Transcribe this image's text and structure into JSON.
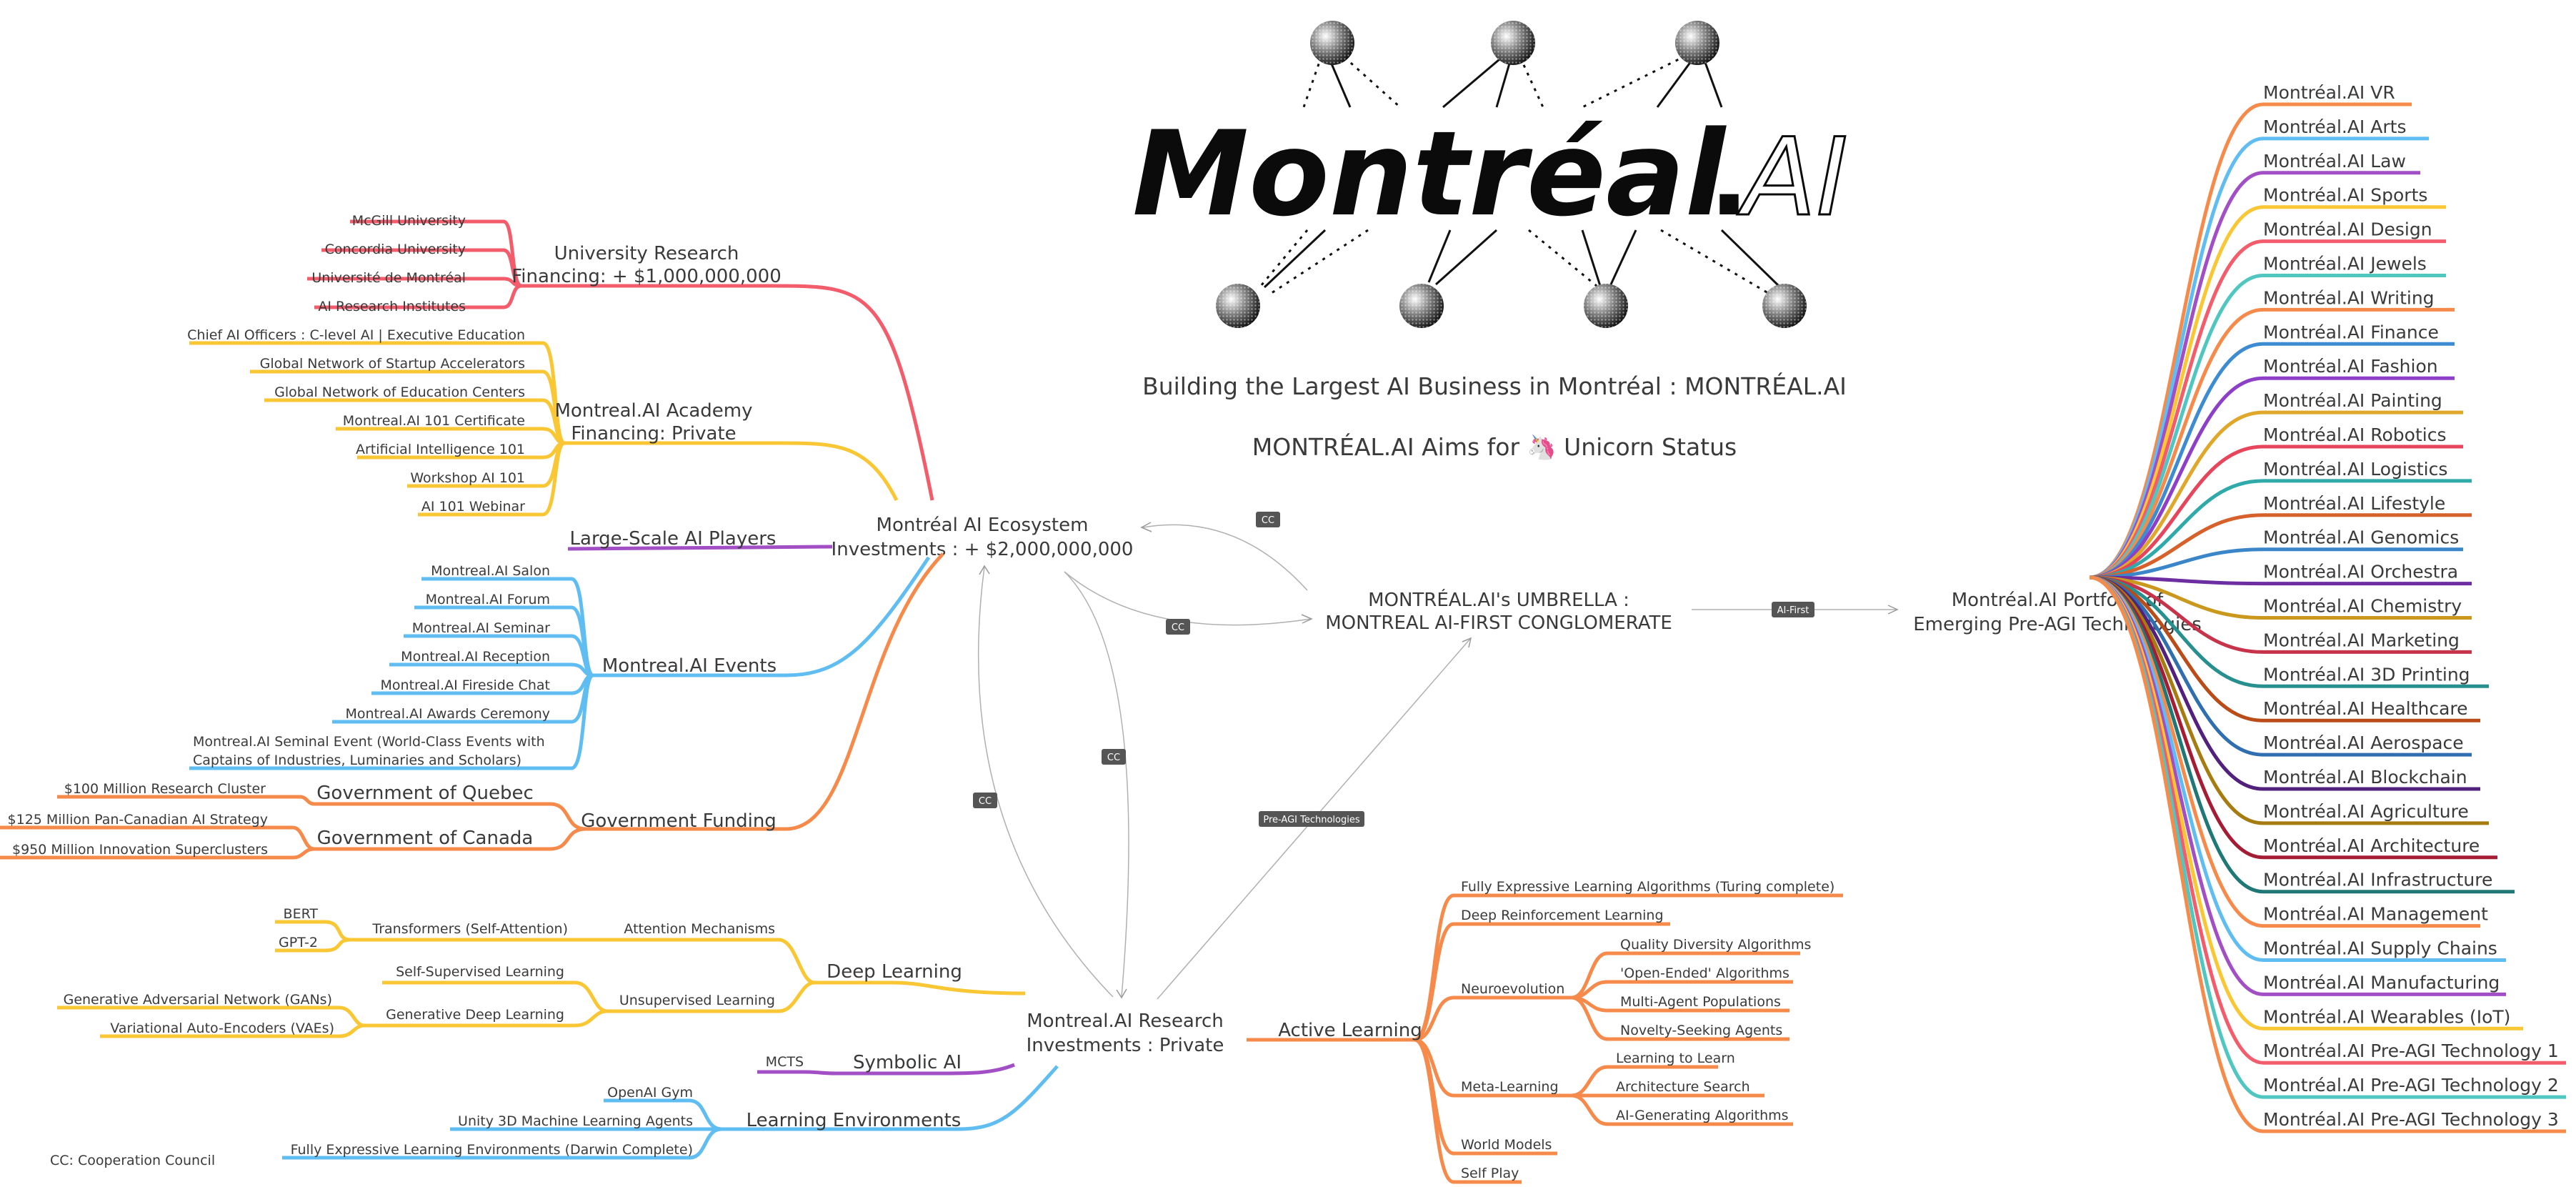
{
  "logo": {
    "word": "Montréal",
    "dot": ".",
    "ai": "AI"
  },
  "headline": "Building the Largest AI Business in Montréal : MONTRÉAL.AI",
  "aims": "MONTRÉAL.AI Aims for 🦄 Unicorn Status",
  "legend": "CC: Cooperation Council",
  "umbrella": {
    "line1": "MONTRÉAL.AI's UMBRELLA :",
    "line2": "MONTREAL AI-FIRST CONGLOMERATE"
  },
  "ecosystem": {
    "line1": "Montréal AI Ecosystem",
    "line2": "Investments : + $2,000,000,000"
  },
  "research": {
    "line1": "Montreal.AI Research",
    "line2": "Investments : Private"
  },
  "portfolio_node": {
    "line1": "Montréal.AI Portfolio of",
    "line2": "Emerging Pre-AGI Technologies"
  },
  "relations": {
    "cc": "CC",
    "ai_first": "AI-First",
    "pre_agi": "Pre-AGI Technologies"
  },
  "colors": {
    "red": "#f25c6b",
    "yellow": "#f9c634",
    "purple": "#a24fc5",
    "blue": "#5fbdf2",
    "orange": "#f58a4b",
    "grey": "#555555"
  },
  "university": {
    "title1": "University Research",
    "title2": "Financing: + $1,000,000,000",
    "items": [
      "McGill University",
      "Concordia University",
      "Université de Montréal",
      "AI Research Institutes"
    ]
  },
  "academy": {
    "title1": "Montreal.AI Academy",
    "title2": "Financing: Private",
    "items": [
      "Chief AI Officers : C-level AI | Executive Education",
      "Global Network of Startup Accelerators",
      "Global Network of Education Centers",
      "Montreal.AI 101 Certificate",
      "Artificial Intelligence 101",
      "Workshop AI 101",
      "AI 101 Webinar"
    ]
  },
  "large_scale": "Large-Scale AI Players",
  "events": {
    "title": "Montreal.AI Events",
    "items": [
      "Montreal.AI Salon",
      "Montreal.AI Forum",
      "Montreal.AI Seminar",
      "Montreal.AI Reception",
      "Montreal.AI Fireside Chat",
      "Montreal.AI Awards Ceremony"
    ],
    "seminal1": "Montreal.AI Seminal Event (World-Class Events with",
    "seminal2": "Captains of Industries, Luminaries and Scholars)"
  },
  "government": {
    "title": "Government Funding",
    "quebec": {
      "label": "Government of Quebec",
      "items": [
        "$100 Million Research Cluster"
      ]
    },
    "canada": {
      "label": "Government of Canada",
      "items": [
        "$125 Million Pan-Canadian AI Strategy",
        "$950 Million Innovation Superclusters"
      ]
    }
  },
  "deep_learning": {
    "title": "Deep Learning",
    "attention": {
      "label": "Attention Mechanisms",
      "sub": "Transformers (Self-Attention)",
      "items": [
        "BERT",
        "GPT-2"
      ]
    },
    "unsupervised": {
      "label": "Unsupervised Learning",
      "self": "Self-Supervised Learning",
      "gen": "Generative Deep Learning",
      "items": [
        "Generative Adversarial Network (GANs)",
        "Variational Auto-Encoders (VAEs)"
      ]
    }
  },
  "symbolic": {
    "title": "Symbolic AI",
    "items": [
      "MCTS"
    ]
  },
  "environments": {
    "title": "Learning Environments",
    "items": [
      "OpenAI Gym",
      "Unity 3D Machine Learning Agents",
      "Fully Expressive Learning Environments (Darwin Complete)"
    ]
  },
  "active": {
    "title": "Active Learning",
    "items": [
      "Fully Expressive Learning Algorithms (Turing complete)",
      "Deep Reinforcement Learning"
    ],
    "neuro": {
      "label": "Neuroevolution",
      "items": [
        "Quality Diversity Algorithms",
        "'Open-Ended' Algorithms",
        "Multi-Agent Populations",
        "Novelty-Seeking Agents"
      ]
    },
    "meta": {
      "label": "Meta-Learning",
      "items": [
        "Learning to Learn",
        "Architecture Search",
        "AI-Generating Algorithms"
      ]
    },
    "tail": [
      "World Models",
      "Self Play"
    ]
  },
  "portfolio": [
    {
      "label": "Montréal.AI VR",
      "color": "#f58a4b"
    },
    {
      "label": "Montréal.AI Arts",
      "color": "#5fbdf2"
    },
    {
      "label": "Montréal.AI Law",
      "color": "#a24fc5"
    },
    {
      "label": "Montréal.AI Sports",
      "color": "#f9c634"
    },
    {
      "label": "Montréal.AI Design",
      "color": "#f25c6b"
    },
    {
      "label": "Montréal.AI Jewels",
      "color": "#4fc6c0"
    },
    {
      "label": "Montréal.AI Writing",
      "color": "#f58a4b"
    },
    {
      "label": "Montréal.AI Finance",
      "color": "#3d8bd1"
    },
    {
      "label": "Montréal.AI Fashion",
      "color": "#8e3fc7"
    },
    {
      "label": "Montréal.AI Painting",
      "color": "#e0a82a"
    },
    {
      "label": "Montréal.AI Robotics",
      "color": "#e6455c"
    },
    {
      "label": "Montréal.AI Logistics",
      "color": "#2fa9a9"
    },
    {
      "label": "Montréal.AI Lifestyle",
      "color": "#d6612a"
    },
    {
      "label": "Montréal.AI Genomics",
      "color": "#3a86c8"
    },
    {
      "label": "Montréal.AI Orchestra",
      "color": "#6c2ea0"
    },
    {
      "label": "Montréal.AI Chemistry",
      "color": "#c9981d"
    },
    {
      "label": "Montréal.AI Marketing",
      "color": "#c7334a"
    },
    {
      "label": "Montréal.AI 3D Printing",
      "color": "#27908f"
    },
    {
      "label": "Montréal.AI Healthcare",
      "color": "#b94c18"
    },
    {
      "label": "Montréal.AI Aerospace",
      "color": "#2f6fb0"
    },
    {
      "label": "Montréal.AI Blockchain",
      "color": "#52207d"
    },
    {
      "label": "Montréal.AI Agriculture",
      "color": "#a67b10"
    },
    {
      "label": "Montréal.AI Architecture",
      "color": "#a51d35"
    },
    {
      "label": "Montréal.AI Infrastructure",
      "color": "#1f7776"
    },
    {
      "label": "Montréal.AI Management",
      "color": "#f58a4b"
    },
    {
      "label": "Montréal.AI Supply Chains",
      "color": "#5fbdf2"
    },
    {
      "label": "Montréal.AI Manufacturing",
      "color": "#a24fc5"
    },
    {
      "label": "Montréal.AI Wearables (IoT)",
      "color": "#f9c634"
    },
    {
      "label": "Montréal.AI Pre-AGI Technology 1",
      "color": "#f25c6b"
    },
    {
      "label": "Montréal.AI Pre-AGI Technology 2",
      "color": "#4fc6c0"
    },
    {
      "label": "Montréal.AI Pre-AGI Technology 3",
      "color": "#f58a4b"
    }
  ]
}
